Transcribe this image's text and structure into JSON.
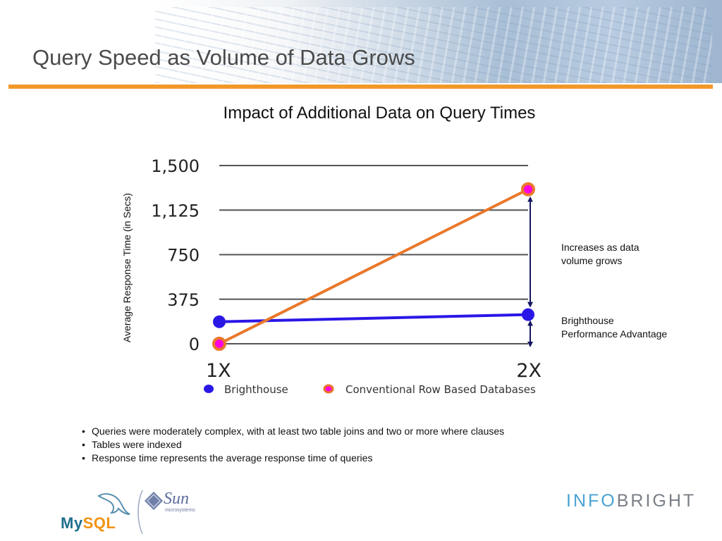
{
  "header": {
    "title": "Query Speed as Volume of Data Grows"
  },
  "annotations": {
    "increase": [
      "Increases as data",
      "volume grows"
    ],
    "advantage": [
      "Brighthouse",
      "Performance Advantage"
    ]
  },
  "notes": [
    "Queries were moderately complex, with at least two table joins and two or more where clauses",
    "Tables were indexed",
    "Response time represents the average response time of queries"
  ],
  "logos": {
    "mysql": "MySQL",
    "sun": "Sun",
    "sun_sub": "microsystems",
    "infobright": "INFOBRIGHT"
  },
  "colors": {
    "brighthouse": "#2a17e6",
    "conventional_line": "#e9782a",
    "conventional_fill": "#ff00e0",
    "arrow": "#141660",
    "grid": "#555555",
    "accent": "#f1982a"
  },
  "chart_data": {
    "type": "line",
    "title": "Impact of Additional Data on Query Times",
    "xlabel": "",
    "ylabel": "Average Response Time (in Secs)",
    "categories": [
      "1X",
      "2X"
    ],
    "yticks": [
      0,
      375,
      750,
      1125,
      1500
    ],
    "ytick_labels": [
      "0",
      "375",
      "750",
      "1,125",
      "1,500"
    ],
    "ylim": [
      0,
      1500
    ],
    "grid": true,
    "legend_position": "bottom",
    "series": [
      {
        "name": "Brighthouse",
        "values": [
          185,
          245
        ]
      },
      {
        "name": "Conventional Row Based Databases",
        "values": [
          0,
          1300
        ]
      }
    ]
  }
}
